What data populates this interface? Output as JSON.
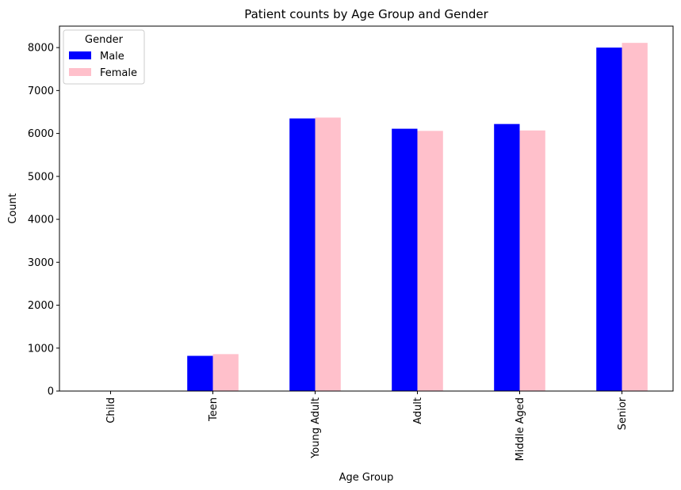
{
  "chart_data": {
    "type": "bar",
    "title": "Patient counts by Age Group and Gender",
    "xlabel": "Age Group",
    "ylabel": "Count",
    "categories": [
      "Child",
      "Teen",
      "Young Adult",
      "Adult",
      "Middle Aged",
      "Senior"
    ],
    "series": [
      {
        "name": "Male",
        "color": "#0000ff",
        "values": [
          0,
          820,
          6350,
          6110,
          6220,
          8000
        ]
      },
      {
        "name": "Female",
        "color": "#ffc0cb",
        "values": [
          0,
          860,
          6370,
          6060,
          6070,
          8110
        ]
      }
    ],
    "ylim": [
      0,
      8500
    ],
    "yticks": [
      0,
      1000,
      2000,
      3000,
      4000,
      5000,
      6000,
      7000,
      8000
    ],
    "legend": {
      "title": "Gender",
      "position": "top-left"
    },
    "grid": false
  }
}
